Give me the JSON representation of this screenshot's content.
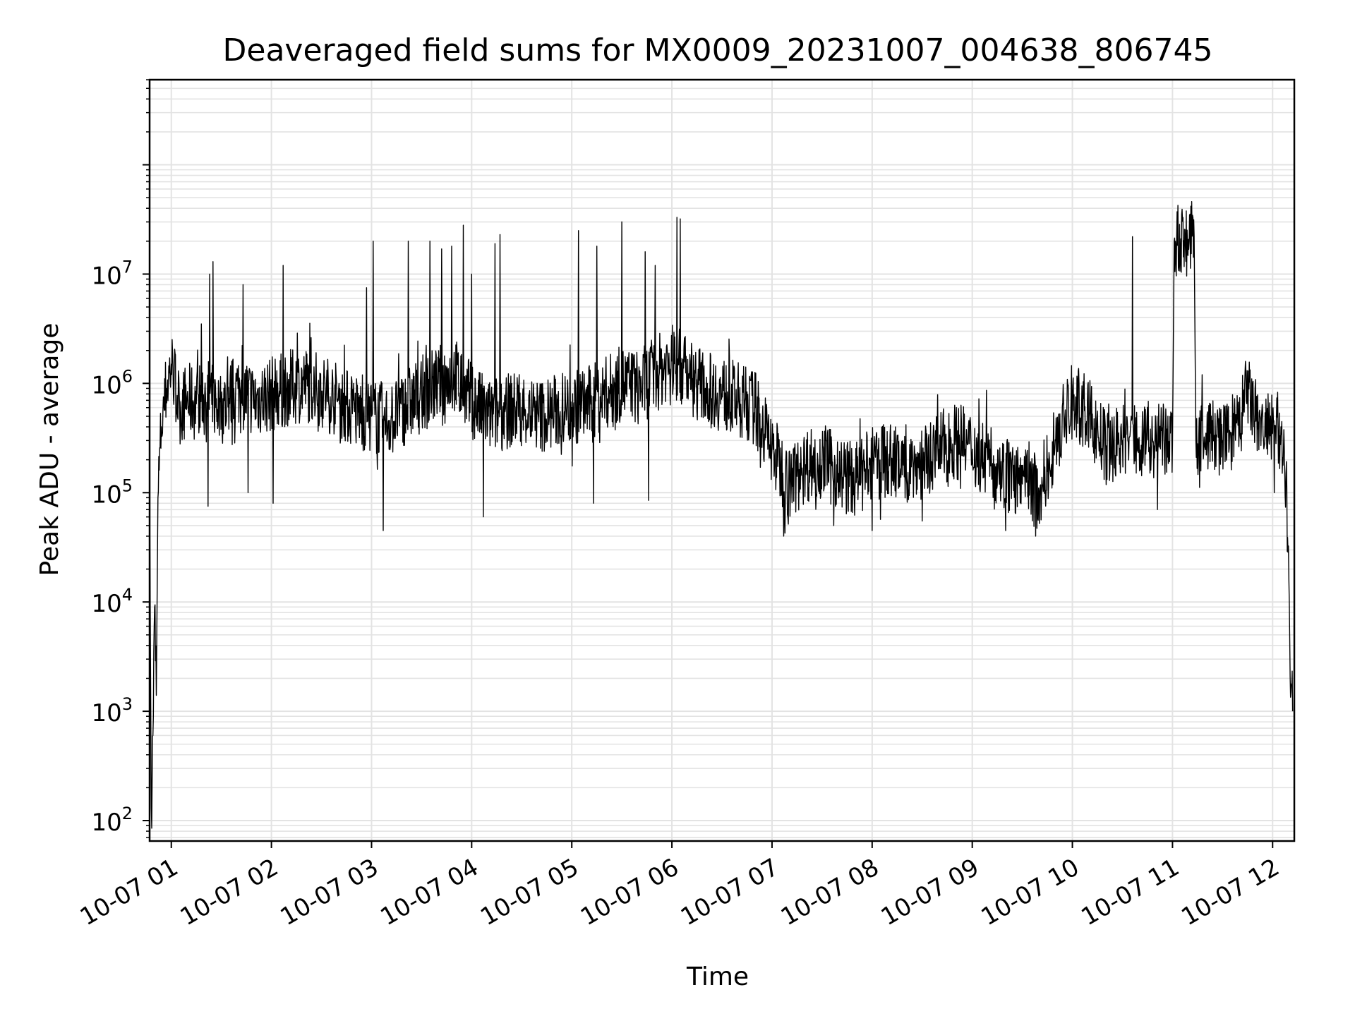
{
  "chart_data": {
    "type": "line",
    "title": "Deaveraged field sums for MX0009_20231007_004638_806745",
    "xlabel": "Time",
    "ylabel": "Peak ADU - average",
    "yscale": "log",
    "grid": true,
    "line_color": "#000000",
    "grid_color": "#e3e3e3",
    "xlim": [
      "2023-10-07 00:47",
      "2023-10-07 12:13"
    ],
    "ylim": [
      65,
      600000000
    ],
    "x_tick_labels": [
      "10-07 01",
      "10-07 02",
      "10-07 03",
      "10-07 04",
      "10-07 05",
      "10-07 06",
      "10-07 07",
      "10-07 08",
      "10-07 09",
      "10-07 10",
      "10-07 11",
      "10-07 12"
    ],
    "x_tick_times": [
      "2023-10-07 01:00",
      "2023-10-07 02:00",
      "2023-10-07 03:00",
      "2023-10-07 04:00",
      "2023-10-07 05:00",
      "2023-10-07 06:00",
      "2023-10-07 07:00",
      "2023-10-07 08:00",
      "2023-10-07 09:00",
      "2023-10-07 10:00",
      "2023-10-07 11:00",
      "2023-10-07 12:00"
    ],
    "y_tick_labels": [
      {
        "base": "10",
        "exp": "2",
        "value": 100
      },
      {
        "base": "10",
        "exp": "3",
        "value": 1000
      },
      {
        "base": "10",
        "exp": "4",
        "value": 10000
      },
      {
        "base": "10",
        "exp": "5",
        "value": 100000
      },
      {
        "base": "10",
        "exp": "6",
        "value": 1000000
      },
      {
        "base": "10",
        "exp": "7",
        "value": 10000000
      }
    ],
    "series": [
      {
        "points": [
          [
            "2023-10-07 00:47",
            100000
          ],
          [
            "2023-10-07 00:48",
            130
          ],
          [
            "2023-10-07 00:49",
            600
          ],
          [
            "2023-10-07 00:50",
            9000
          ],
          [
            "2023-10-07 00:51",
            1400
          ],
          [
            "2023-10-07 00:52",
            90000
          ],
          [
            "2023-10-07 00:54",
            400000
          ],
          [
            "2023-10-07 00:57",
            900000
          ],
          [
            "2023-10-07 01:00",
            1500000
          ],
          [
            "2023-10-07 01:05",
            600000
          ],
          [
            "2023-10-07 01:10",
            700000
          ],
          [
            "2023-10-07 01:15",
            650000
          ],
          [
            "2023-10-07 01:20",
            800000
          ],
          [
            "2023-10-07 01:30",
            600000
          ],
          [
            "2023-10-07 01:40",
            900000
          ],
          [
            "2023-10-07 01:50",
            700000
          ],
          [
            "2023-10-07 02:00",
            800000
          ],
          [
            "2023-10-07 02:10",
            900000
          ],
          [
            "2023-10-07 02:20",
            1000000
          ],
          [
            "2023-10-07 02:30",
            850000
          ],
          [
            "2023-10-07 02:40",
            700000
          ],
          [
            "2023-10-07 02:50",
            550000
          ],
          [
            "2023-10-07 03:00",
            500000
          ],
          [
            "2023-10-07 03:10",
            450000
          ],
          [
            "2023-10-07 03:20",
            600000
          ],
          [
            "2023-10-07 03:30",
            800000
          ],
          [
            "2023-10-07 03:40",
            1000000
          ],
          [
            "2023-10-07 03:50",
            1200000
          ],
          [
            "2023-10-07 04:00",
            700000
          ],
          [
            "2023-10-07 04:10",
            500000
          ],
          [
            "2023-10-07 04:20",
            550000
          ],
          [
            "2023-10-07 04:30",
            600000
          ],
          [
            "2023-10-07 04:40",
            500000
          ],
          [
            "2023-10-07 04:50",
            550000
          ],
          [
            "2023-10-07 05:00",
            600000
          ],
          [
            "2023-10-07 05:10",
            650000
          ],
          [
            "2023-10-07 05:20",
            800000
          ],
          [
            "2023-10-07 05:30",
            1000000
          ],
          [
            "2023-10-07 05:40",
            900000
          ],
          [
            "2023-10-07 05:50",
            1200000
          ],
          [
            "2023-10-07 06:00",
            1600000
          ],
          [
            "2023-10-07 06:10",
            1200000
          ],
          [
            "2023-10-07 06:20",
            900000
          ],
          [
            "2023-10-07 06:30",
            800000
          ],
          [
            "2023-10-07 06:40",
            700000
          ],
          [
            "2023-10-07 06:50",
            600000
          ],
          [
            "2023-10-07 07:00",
            250000
          ],
          [
            "2023-10-07 07:10",
            120000
          ],
          [
            "2023-10-07 07:20",
            180000
          ],
          [
            "2023-10-07 07:30",
            200000
          ],
          [
            "2023-10-07 07:40",
            150000
          ],
          [
            "2023-10-07 07:50",
            130000
          ],
          [
            "2023-10-07 08:00",
            180000
          ],
          [
            "2023-10-07 08:10",
            200000
          ],
          [
            "2023-10-07 08:20",
            170000
          ],
          [
            "2023-10-07 08:30",
            190000
          ],
          [
            "2023-10-07 08:40",
            250000
          ],
          [
            "2023-10-07 08:50",
            300000
          ],
          [
            "2023-10-07 09:00",
            250000
          ],
          [
            "2023-10-07 09:10",
            200000
          ],
          [
            "2023-10-07 09:20",
            150000
          ],
          [
            "2023-10-07 09:30",
            120000
          ],
          [
            "2023-10-07 09:40",
            100000
          ],
          [
            "2023-10-07 09:50",
            300000
          ],
          [
            "2023-10-07 10:00",
            700000
          ],
          [
            "2023-10-07 10:10",
            500000
          ],
          [
            "2023-10-07 10:20",
            250000
          ],
          [
            "2023-10-07 10:30",
            300000
          ],
          [
            "2023-10-07 10:40",
            320000
          ],
          [
            "2023-10-07 10:50",
            300000
          ],
          [
            "2023-10-07 11:00",
            280000
          ],
          [
            "2023-10-07 11:01",
            20000000
          ],
          [
            "2023-10-07 11:05",
            21000000
          ],
          [
            "2023-10-07 11:10",
            20000000
          ],
          [
            "2023-10-07 11:13",
            22000000
          ],
          [
            "2023-10-07 11:14",
            300000
          ],
          [
            "2023-10-07 11:20",
            350000
          ],
          [
            "2023-10-07 11:30",
            300000
          ],
          [
            "2023-10-07 11:40",
            400000
          ],
          [
            "2023-10-07 11:45",
            900000
          ],
          [
            "2023-10-07 11:50",
            450000
          ],
          [
            "2023-10-07 12:00",
            350000
          ],
          [
            "2023-10-07 12:05",
            400000
          ],
          [
            "2023-10-07 12:08",
            150000
          ],
          [
            "2023-10-07 12:10",
            10000
          ],
          [
            "2023-10-07 12:11",
            1500
          ],
          [
            "2023-10-07 12:12",
            1000
          ]
        ]
      }
    ],
    "spikes": [
      [
        "2023-10-07 01:18",
        3500000
      ],
      [
        "2023-10-07 01:23",
        10000000
      ],
      [
        "2023-10-07 01:25",
        13000000
      ],
      [
        "2023-10-07 01:43",
        8000000
      ],
      [
        "2023-10-07 02:07",
        12000000
      ],
      [
        "2023-10-07 02:57",
        7500000
      ],
      [
        "2023-10-07 03:01",
        20000000
      ],
      [
        "2023-10-07 03:22",
        20000000
      ],
      [
        "2023-10-07 03:35",
        20000000
      ],
      [
        "2023-10-07 03:42",
        17000000
      ],
      [
        "2023-10-07 03:48",
        18000000
      ],
      [
        "2023-10-07 03:55",
        28000000
      ],
      [
        "2023-10-07 04:00",
        10000000
      ],
      [
        "2023-10-07 04:14",
        19000000
      ],
      [
        "2023-10-07 04:17",
        23000000
      ],
      [
        "2023-10-07 05:04",
        25000000
      ],
      [
        "2023-10-07 05:15",
        18000000
      ],
      [
        "2023-10-07 05:30",
        30000000
      ],
      [
        "2023-10-07 05:44",
        16000000
      ],
      [
        "2023-10-07 05:50",
        12000000
      ],
      [
        "2023-10-07 06:03",
        33000000
      ],
      [
        "2023-10-07 06:05",
        32000000
      ],
      [
        "2023-10-07 10:36",
        22000000
      ]
    ],
    "noise": {
      "amplitude_decades": 0.35,
      "dips": [
        [
          "2023-10-07 01:22",
          75000
        ],
        [
          "2023-10-07 01:46",
          100000
        ],
        [
          "2023-10-07 02:01",
          80000
        ],
        [
          "2023-10-07 03:07",
          45000
        ],
        [
          "2023-10-07 04:07",
          60000
        ],
        [
          "2023-10-07 05:13",
          80000
        ],
        [
          "2023-10-07 05:46",
          85000
        ],
        [
          "2023-10-07 07:07",
          40000
        ],
        [
          "2023-10-07 07:37",
          50000
        ],
        [
          "2023-10-07 08:00",
          45000
        ],
        [
          "2023-10-07 08:30",
          55000
        ],
        [
          "2023-10-07 09:20",
          45000
        ],
        [
          "2023-10-07 09:38",
          40000
        ],
        [
          "2023-10-07 10:51",
          70000
        ],
        [
          "2023-10-07 12:01",
          100000
        ]
      ]
    }
  }
}
